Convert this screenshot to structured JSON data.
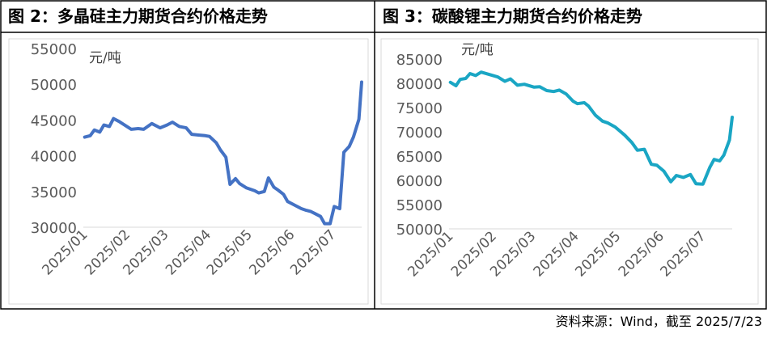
{
  "header": {
    "left_title": "图 2：多晶硅主力期货合约价格走势",
    "right_title": "图 3：碳酸锂主力期货合约价格走势"
  },
  "footer": {
    "source": "资料来源：Wind，截至 2025/7/23"
  },
  "chart_data": [
    {
      "type": "line",
      "title": "图 2：多晶硅主力期货合约价格走势",
      "unit_label": "元/吨",
      "ylim": [
        30000,
        55000
      ],
      "yticks": [
        30000,
        35000,
        40000,
        45000,
        50000,
        55000
      ],
      "xlim": [
        "2025-01-01",
        "2025-07-23"
      ],
      "xtick_labels": [
        "2025/01",
        "2025/02",
        "2025/03",
        "2025/04",
        "2025/05",
        "2025/06",
        "2025/07"
      ],
      "xtick_dates": [
        "2025-01-01",
        "2025-02-01",
        "2025-03-01",
        "2025-04-01",
        "2025-05-01",
        "2025-06-01",
        "2025-07-01"
      ],
      "color": "#4472c4",
      "series": [
        {
          "x": [
            "2025-01-02",
            "2025-01-06",
            "2025-01-09",
            "2025-01-13",
            "2025-01-16",
            "2025-01-20",
            "2025-01-23",
            "2025-01-27",
            "2025-02-05",
            "2025-02-10",
            "2025-02-14",
            "2025-02-20",
            "2025-02-26",
            "2025-03-03",
            "2025-03-07",
            "2025-03-12",
            "2025-03-17",
            "2025-03-21",
            "2025-03-26",
            "2025-03-31",
            "2025-04-03",
            "2025-04-08",
            "2025-04-11",
            "2025-04-15",
            "2025-04-18",
            "2025-04-22",
            "2025-04-25",
            "2025-04-30",
            "2025-05-06",
            "2025-05-09",
            "2025-05-13",
            "2025-05-16",
            "2025-05-20",
            "2025-05-23",
            "2025-05-27",
            "2025-05-30",
            "2025-06-04",
            "2025-06-09",
            "2025-06-12",
            "2025-06-16",
            "2025-06-19",
            "2025-06-23",
            "2025-06-26",
            "2025-06-30",
            "2025-07-03",
            "2025-07-07",
            "2025-07-10",
            "2025-07-14",
            "2025-07-17",
            "2025-07-21",
            "2025-07-23"
          ],
          "y": [
            42600,
            42800,
            43600,
            43300,
            44300,
            44100,
            45200,
            44800,
            43700,
            43800,
            43700,
            44500,
            43900,
            44300,
            44700,
            44100,
            43900,
            43000,
            42900,
            42800,
            42700,
            41800,
            40800,
            39800,
            36000,
            36800,
            36100,
            35500,
            35100,
            34800,
            35000,
            36900,
            35600,
            35200,
            34600,
            33600,
            33100,
            32600,
            32400,
            32200,
            31900,
            31500,
            30500,
            30500,
            32900,
            32600,
            40500,
            41300,
            42600,
            45100,
            50300
          ]
        }
      ]
    },
    {
      "type": "line",
      "title": "图 3：碳酸锂主力期货合约价格走势",
      "unit_label": "元/吨",
      "ylim": [
        50000,
        85000
      ],
      "yticks": [
        50000,
        55000,
        60000,
        65000,
        70000,
        75000,
        80000,
        85000
      ],
      "xlim": [
        "2025-01-01",
        "2025-07-23"
      ],
      "xtick_labels": [
        "2025/01",
        "2025/02",
        "2025/03",
        "2025/04",
        "2025/05",
        "2025/06",
        "2025/07"
      ],
      "xtick_dates": [
        "2025-01-01",
        "2025-02-01",
        "2025-03-01",
        "2025-04-01",
        "2025-05-01",
        "2025-06-01",
        "2025-07-01"
      ],
      "color": "#1aa6c4",
      "series": [
        {
          "x": [
            "2025-01-02",
            "2025-01-06",
            "2025-01-09",
            "2025-01-13",
            "2025-01-16",
            "2025-01-20",
            "2025-01-24",
            "2025-02-05",
            "2025-02-10",
            "2025-02-14",
            "2025-02-19",
            "2025-02-24",
            "2025-03-03",
            "2025-03-07",
            "2025-03-12",
            "2025-03-17",
            "2025-03-21",
            "2025-03-26",
            "2025-03-31",
            "2025-04-03",
            "2025-04-08",
            "2025-04-11",
            "2025-04-16",
            "2025-04-21",
            "2025-04-25",
            "2025-04-30",
            "2025-05-07",
            "2025-05-12",
            "2025-05-16",
            "2025-05-21",
            "2025-05-26",
            "2025-05-30",
            "2025-06-04",
            "2025-06-09",
            "2025-06-13",
            "2025-06-18",
            "2025-06-23",
            "2025-06-27",
            "2025-07-02",
            "2025-07-07",
            "2025-07-10",
            "2025-07-14",
            "2025-07-17",
            "2025-07-21",
            "2025-07-23"
          ],
          "y": [
            80200,
            79500,
            80800,
            81000,
            82000,
            81600,
            82300,
            81300,
            80400,
            80900,
            79600,
            79800,
            79200,
            79300,
            78500,
            78300,
            78600,
            77800,
            76300,
            75800,
            76000,
            75300,
            73400,
            72200,
            71800,
            71000,
            69300,
            67800,
            66200,
            66400,
            63300,
            63100,
            61900,
            59700,
            61000,
            60600,
            61200,
            59300,
            59200,
            62700,
            64300,
            64000,
            65200,
            68300,
            73000
          ]
        }
      ]
    }
  ]
}
